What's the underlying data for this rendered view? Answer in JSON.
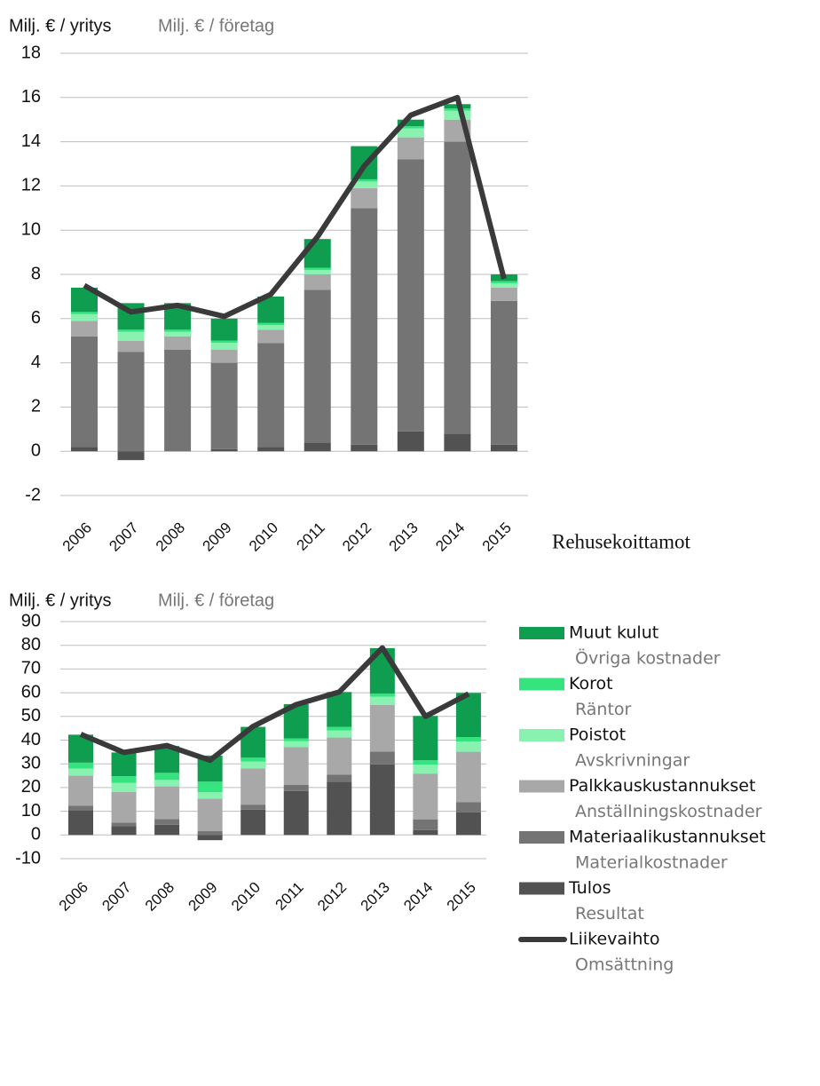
{
  "chart_data": [
    {
      "type": "bar",
      "stacked": true,
      "ylabel": "Milj. € / yritys",
      "ylabel_alt": "Milj. € / företag",
      "categories": [
        "2006",
        "2007",
        "2008",
        "2009",
        "2010",
        "2011",
        "2012",
        "2013",
        "2014",
        "2015"
      ],
      "ylim": [
        -2,
        18
      ],
      "yticks": [
        -2,
        0,
        2,
        4,
        6,
        8,
        10,
        12,
        14,
        16,
        18
      ],
      "grid": true,
      "series": [
        {
          "color": "#525252",
          "values": [
            0.2,
            -0.4,
            0.0,
            0.1,
            0.2,
            0.4,
            0.3,
            0.9,
            0.8,
            0.3
          ]
        },
        {
          "color": "#747474",
          "values": [
            5.0,
            4.5,
            4.6,
            3.9,
            4.7,
            6.9,
            10.7,
            12.3,
            13.2,
            6.5
          ]
        },
        {
          "color": "#a8a8a8",
          "values": [
            0.7,
            0.5,
            0.6,
            0.6,
            0.6,
            0.7,
            0.9,
            1.0,
            1.0,
            0.6
          ]
        },
        {
          "color": "#8af2b0",
          "values": [
            0.3,
            0.4,
            0.2,
            0.3,
            0.2,
            0.2,
            0.3,
            0.4,
            0.4,
            0.2
          ]
        },
        {
          "color": "#35e47f",
          "values": [
            0.1,
            0.1,
            0.1,
            0.1,
            0.1,
            0.1,
            0.1,
            0.1,
            0.1,
            0.1
          ]
        },
        {
          "color": "#0f9d4f",
          "values": [
            1.1,
            1.2,
            1.2,
            1.0,
            1.2,
            1.3,
            1.5,
            0.3,
            0.2,
            0.3
          ]
        },
        {
          "type": "line",
          "color": "#3a3a3a",
          "values": [
            7.5,
            6.3,
            6.6,
            6.1,
            7.1,
            9.7,
            12.9,
            15.2,
            16.0,
            7.8
          ]
        }
      ]
    },
    {
      "type": "bar",
      "stacked": true,
      "title": "Rehusekoittamot",
      "ylabel": "Milj. € / yritys",
      "ylabel_alt": "Milj. € / företag",
      "categories": [
        "2006",
        "2007",
        "2008",
        "2009",
        "2010",
        "2011",
        "2012",
        "2013",
        "2014",
        "2015"
      ],
      "ylim": [
        -10,
        90
      ],
      "yticks": [
        -10,
        0,
        10,
        20,
        30,
        40,
        50,
        60,
        70,
        80,
        90
      ],
      "grid": true,
      "series": [
        {
          "name": "Tulos",
          "name_alt": "Resultat",
          "color": "#525252",
          "values": [
            10.5,
            3.7,
            4.3,
            -2.2,
            10.7,
            18.5,
            22.5,
            29.8,
            2.1,
            9.5
          ]
        },
        {
          "name": "Materiaalikustannukset",
          "name_alt": "Materialkostnader",
          "color": "#747474",
          "values": [
            1.8,
            1.5,
            2.4,
            1.6,
            2.1,
            2.6,
            3.0,
            5.4,
            4.5,
            4.4
          ]
        },
        {
          "name": "Palkkauskustannukset",
          "name_alt": "Anställningskostnader",
          "color": "#a8a8a8",
          "values": [
            12.7,
            13.0,
            13.8,
            13.7,
            15.3,
            15.9,
            15.6,
            19.6,
            19.3,
            21.2
          ]
        },
        {
          "name": "Poistot",
          "name_alt": "Avskrivningar",
          "color": "#8af2b0",
          "values": [
            3.0,
            3.8,
            2.7,
            2.7,
            2.9,
            2.5,
            3.0,
            3.5,
            3.8,
            4.3
          ]
        },
        {
          "name": "Korot",
          "name_alt": "Räntor",
          "color": "#35e47f",
          "values": [
            2.5,
            2.8,
            3.0,
            4.5,
            1.6,
            1.2,
            1.5,
            1.3,
            1.8,
            1.9
          ]
        },
        {
          "name": "Muut kulut",
          "name_alt": "Övriga kostnader",
          "color": "#0f9d4f",
          "values": [
            11.8,
            10.0,
            11.3,
            11.0,
            13.0,
            14.5,
            14.7,
            19.2,
            18.7,
            18.6
          ]
        },
        {
          "type": "line",
          "name": "Liikevaihto",
          "name_alt": "Omsättning",
          "color": "#3a3a3a",
          "values": [
            42.5,
            34.8,
            37.7,
            31.5,
            45.8,
            55.0,
            60.3,
            78.9,
            50.0,
            59.5
          ]
        }
      ]
    }
  ]
}
